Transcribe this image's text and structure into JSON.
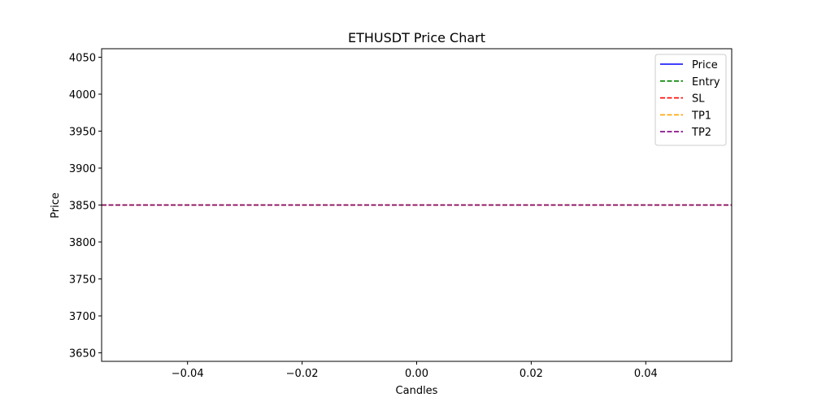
{
  "chart_data": {
    "type": "line",
    "title": "ETHUSDT Price Chart",
    "xlabel": "Candles",
    "ylabel": "Price",
    "xlim": [
      -0.055,
      0.055
    ],
    "ylim": [
      3638.5,
      4061.5
    ],
    "xticks": [
      -0.04,
      -0.02,
      0.0,
      0.02,
      0.04
    ],
    "xtick_labels": [
      "−0.04",
      "−0.02",
      "0.00",
      "0.02",
      "0.04"
    ],
    "yticks": [
      3650,
      3700,
      3750,
      3800,
      3850,
      3900,
      3950,
      4000,
      4050
    ],
    "ytick_labels": [
      "3650",
      "3700",
      "3750",
      "3800",
      "3850",
      "3900",
      "3950",
      "4000",
      "4050"
    ],
    "grid": false,
    "legend_position": "top-right",
    "series": [
      {
        "name": "Price",
        "style": "solid",
        "color": "#0000ff",
        "x": [
          0
        ],
        "y": [
          3850
        ]
      },
      {
        "name": "Entry",
        "style": "dashed",
        "color": "#008000",
        "hline": 3850
      },
      {
        "name": "SL",
        "style": "dashed",
        "color": "#ff0000",
        "hline": 3850
      },
      {
        "name": "TP1",
        "style": "dashed",
        "color": "#ffa500",
        "hline": 3850
      },
      {
        "name": "TP2",
        "style": "dashed",
        "color": "#800080",
        "hline": 3850
      }
    ]
  }
}
